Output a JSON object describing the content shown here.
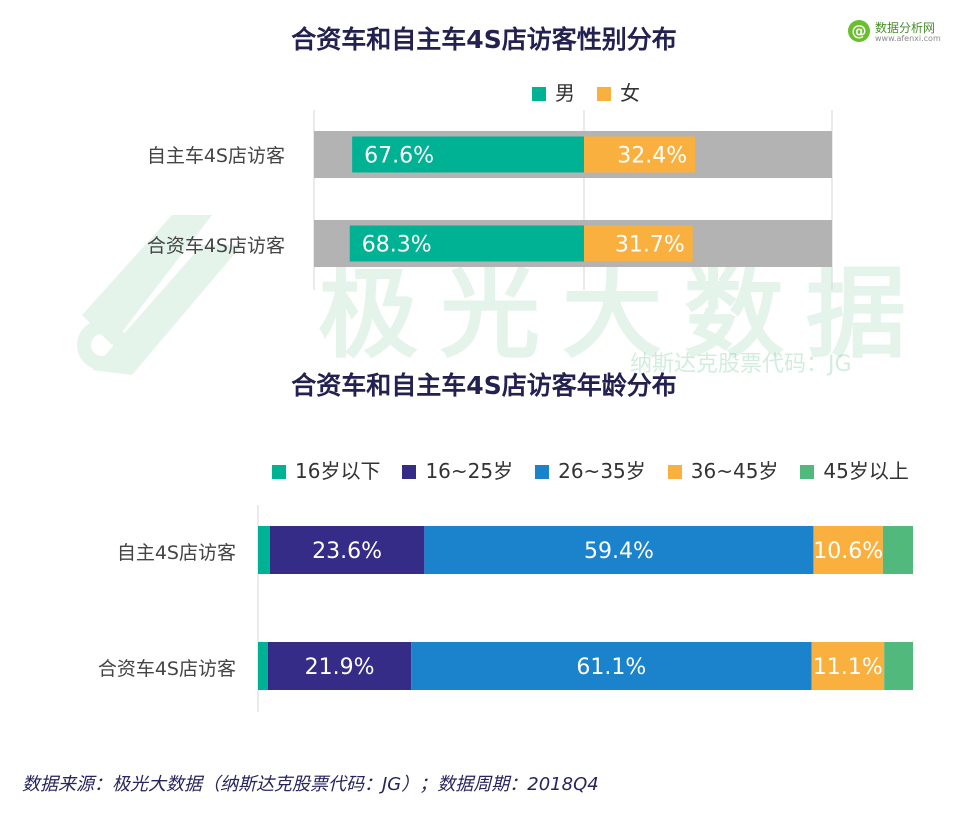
{
  "watermark": {
    "text": "极光大数据",
    "subtext": "纳斯达克股票代码：JG"
  },
  "brand": {
    "at": "@",
    "name": "数据分析网",
    "url": "www.afenxi.com"
  },
  "chart_data": [
    {
      "type": "bar",
      "stacked": true,
      "orientation": "horizontal",
      "title": "合资车和自主车4S店访客性别分布",
      "categories": [
        "自主车4S店访客",
        "合资车4S店访客"
      ],
      "series": [
        {
          "name": "男",
          "color": "#00b294",
          "values": [
            67.6,
            68.3
          ],
          "labels": [
            "67.6%",
            "68.3%"
          ]
        },
        {
          "name": "女",
          "color": "#f9b03f",
          "values": [
            32.4,
            31.7
          ],
          "labels": [
            "32.4%",
            "31.7%"
          ]
        }
      ],
      "legend_position": "top-center",
      "background_band_color": "#b3b3b3"
    },
    {
      "type": "bar",
      "stacked": true,
      "orientation": "horizontal",
      "title": "合资车和自主车4S店访客年龄分布",
      "categories": [
        "自主4S店访客",
        "合资车4S店访客"
      ],
      "series": [
        {
          "name": "16岁以下",
          "color": "#00b294",
          "values": [
            1.8,
            1.5
          ],
          "labels": [
            "",
            ""
          ]
        },
        {
          "name": "16~25岁",
          "color": "#352c87",
          "values": [
            23.6,
            21.9
          ],
          "labels": [
            "23.6%",
            "21.9%"
          ]
        },
        {
          "name": "26~35岁",
          "color": "#1b82cc",
          "values": [
            59.4,
            61.1
          ],
          "labels": [
            "59.4%",
            "61.1%"
          ]
        },
        {
          "name": "36~45岁",
          "color": "#f9b03f",
          "values": [
            10.6,
            11.1
          ],
          "labels": [
            "10.6%",
            "11.1%"
          ]
        },
        {
          "name": "45岁以上",
          "color": "#52b97c",
          "values": [
            4.6,
            4.4
          ],
          "labels": [
            "",
            ""
          ]
        }
      ],
      "legend_position": "top"
    }
  ],
  "source": "数据来源：极光大数据（纳斯达克股票代码：JG）；数据周期：2018Q4"
}
